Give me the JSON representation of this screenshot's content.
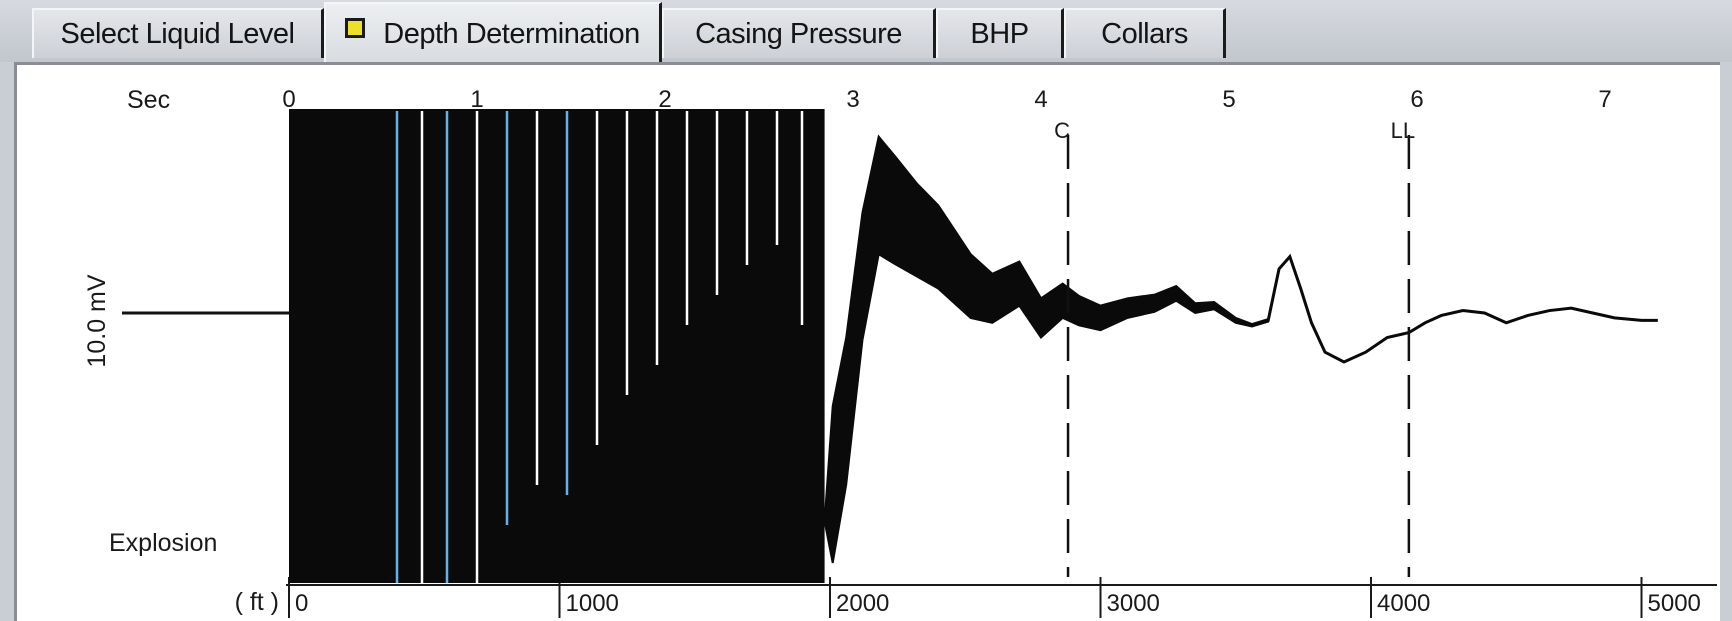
{
  "tabs": [
    {
      "label": "Select Liquid Level",
      "active": false
    },
    {
      "label": "Depth Determination",
      "active": true
    },
    {
      "label": "Casing Pressure",
      "active": false
    },
    {
      "label": "BHP",
      "active": false
    },
    {
      "label": "Collars",
      "active": false
    }
  ],
  "chart_data": {
    "type": "line",
    "title": "",
    "x_top_label": "Sec",
    "x_top_ticks": [
      "0",
      "1",
      "2",
      "3",
      "4",
      "5",
      "6",
      "7"
    ],
    "x_bottom_label": "( ft )",
    "x_bottom_ticks": [
      "0",
      "1000",
      "2000",
      "3000",
      "4000",
      "5000"
    ],
    "ylabel": "10.0 mV",
    "annotation_left": "Explosion",
    "markers": [
      {
        "label": "C",
        "depth_ft": 2880,
        "style": "dashed"
      },
      {
        "label": "LL",
        "depth_ft": 4140,
        "style": "dashed"
      }
    ],
    "explosion_start_ft": 0,
    "saturated_region_ft": [
      0,
      1980
    ],
    "trace_samples": {
      "depth_ft": [
        0,
        1980,
        2010,
        2060,
        2120,
        2180,
        2240,
        2320,
        2400,
        2460,
        2520,
        2600,
        2700,
        2780,
        2860,
        2920,
        3000,
        3100,
        3200,
        3280,
        3350,
        3420,
        3500,
        3560,
        3620,
        3660,
        3700,
        3740,
        3780,
        3830,
        3900,
        3980,
        4060,
        4140,
        4200,
        4260,
        4340,
        4420,
        4500,
        4580,
        4660,
        4740,
        4820,
        4900,
        5000,
        5060
      ],
      "mv_center": [
        0,
        -8.5,
        -7.0,
        -4.0,
        1.5,
        4.8,
        4.2,
        3.4,
        2.7,
        1.9,
        1.1,
        0.6,
        1.2,
        -0.2,
        0.5,
        0.1,
        -0.2,
        0.2,
        0.4,
        0.8,
        0.2,
        0.3,
        -0.3,
        -0.5,
        -0.3,
        1.8,
        2.3,
        1.0,
        -0.4,
        -1.6,
        -2.0,
        -1.6,
        -1.0,
        -0.8,
        -0.4,
        -0.1,
        0.1,
        0.0,
        -0.4,
        -0.1,
        0.1,
        0.2,
        0.0,
        -0.2,
        -0.3,
        -0.3
      ],
      "mv_amplitude": [
        0,
        0,
        3.2,
        3.0,
        2.6,
        2.4,
        2.2,
        1.9,
        1.7,
        1.5,
        1.3,
        1.0,
        0.9,
        0.8,
        0.7,
        0.6,
        0.5,
        0.4,
        0.35,
        0.3,
        0.2,
        0.15,
        0.1,
        0.05,
        0.05,
        0,
        0,
        0,
        0,
        0,
        0,
        0,
        0,
        0,
        0,
        0,
        0,
        0,
        0,
        0,
        0,
        0,
        0,
        0,
        0,
        0
      ]
    }
  }
}
